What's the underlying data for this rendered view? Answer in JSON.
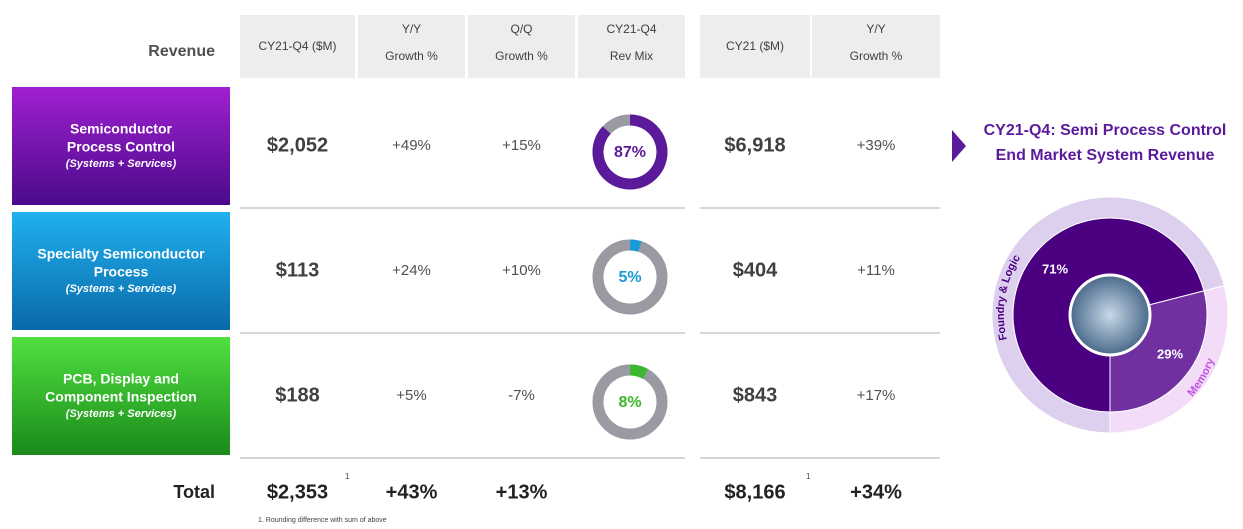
{
  "header": {
    "revenue": "Revenue",
    "columns": [
      [
        "CY21-Q4 ($M)"
      ],
      [
        "Y/Y",
        "Growth %"
      ],
      [
        "Q/Q",
        "Growth %"
      ],
      [
        "CY21-Q4",
        "Rev Mix"
      ],
      [
        "CY21 ($M)"
      ],
      [
        "Y/Y",
        "Growth %"
      ]
    ]
  },
  "rows": [
    {
      "name": [
        "Semiconductor",
        "Process Control"
      ],
      "note": "(Systems + Services)",
      "q4": "$2,052",
      "yy": "+49%",
      "qq": "+15%",
      "mix": {
        "value": 87,
        "label": "87%"
      },
      "cy21": "$6,918",
      "cy_yy": "+39%"
    },
    {
      "name": [
        "Specialty Semiconductor",
        "Process"
      ],
      "note": "(Systems + Services)",
      "q4": "$113",
      "yy": "+24%",
      "qq": "+10%",
      "mix": {
        "value": 5,
        "label": "5%"
      },
      "cy21": "$404",
      "cy_yy": "+11%"
    },
    {
      "name": [
        "PCB, Display and",
        "Component Inspection"
      ],
      "note": "(Systems + Services)",
      "q4": "$188",
      "yy": "+5%",
      "qq": "-7%",
      "mix": {
        "value": 8,
        "label": "8%"
      },
      "cy21": "$843",
      "cy_yy": "+17%"
    }
  ],
  "total": {
    "label": "Total",
    "q4": "$2,353",
    "q4_note": "1",
    "yy": "+43%",
    "qq": "+13%",
    "cy21": "$8,166",
    "cy21_note": "1",
    "cy_yy": "+34%"
  },
  "footnote": "1. Rounding difference with sum of above",
  "pie": {
    "title": [
      "CY21-Q4: Semi Process Control",
      "End Market System Revenue"
    ],
    "segments": [
      {
        "name": "Foundry & Logic",
        "value": 71,
        "label": "71%"
      },
      {
        "name": "Memory",
        "value": 29,
        "label": "29%"
      }
    ]
  }
}
